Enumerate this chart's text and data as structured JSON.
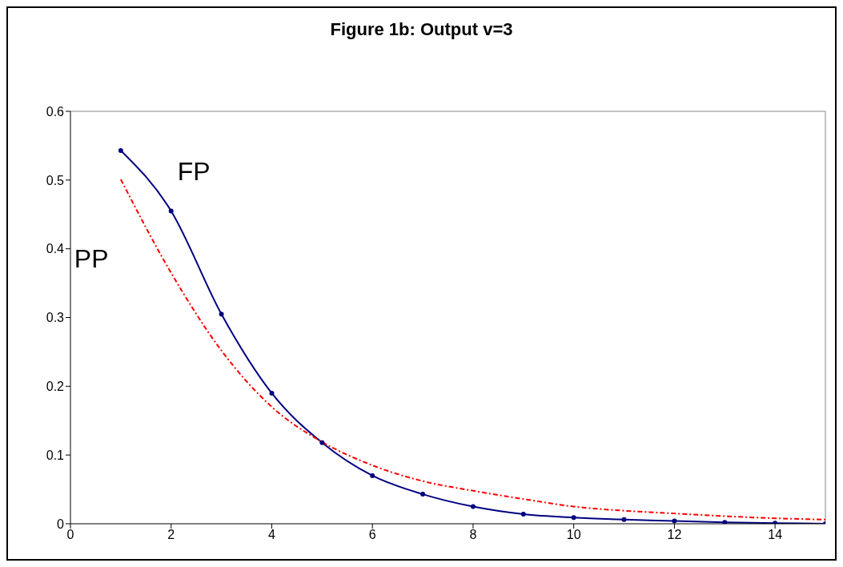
{
  "chart_data": {
    "type": "line",
    "title": "Figure 1b: Output v=3",
    "x": [
      1,
      2,
      3,
      4,
      5,
      6,
      7,
      8,
      9,
      10,
      11,
      12,
      13,
      14,
      15
    ],
    "series": [
      {
        "name": "FP",
        "color": "#000080",
        "marker": "circle",
        "line_style": "solid",
        "values": [
          0.543,
          0.455,
          0.305,
          0.19,
          0.118,
          0.07,
          0.043,
          0.025,
          0.014,
          0.009,
          0.006,
          0.004,
          0.002,
          0.001,
          0
        ]
      },
      {
        "name": "PP",
        "color": "#ff0000",
        "marker": "none",
        "line_style": "dashed",
        "values": [
          0.501,
          0.365,
          0.252,
          0.17,
          0.119,
          0.085,
          0.062,
          0.048,
          0.036,
          0.025,
          0.019,
          0.015,
          0.011,
          0.008,
          0.006
        ]
      }
    ],
    "xlim": [
      0,
      15
    ],
    "xticks": [
      0,
      2,
      4,
      6,
      8,
      10,
      12,
      14
    ],
    "ylim": [
      0,
      0.6
    ],
    "yticks": [
      0,
      0.1,
      0.2,
      0.3,
      0.4,
      0.5,
      0.6
    ],
    "grid": false,
    "legend": false
  }
}
